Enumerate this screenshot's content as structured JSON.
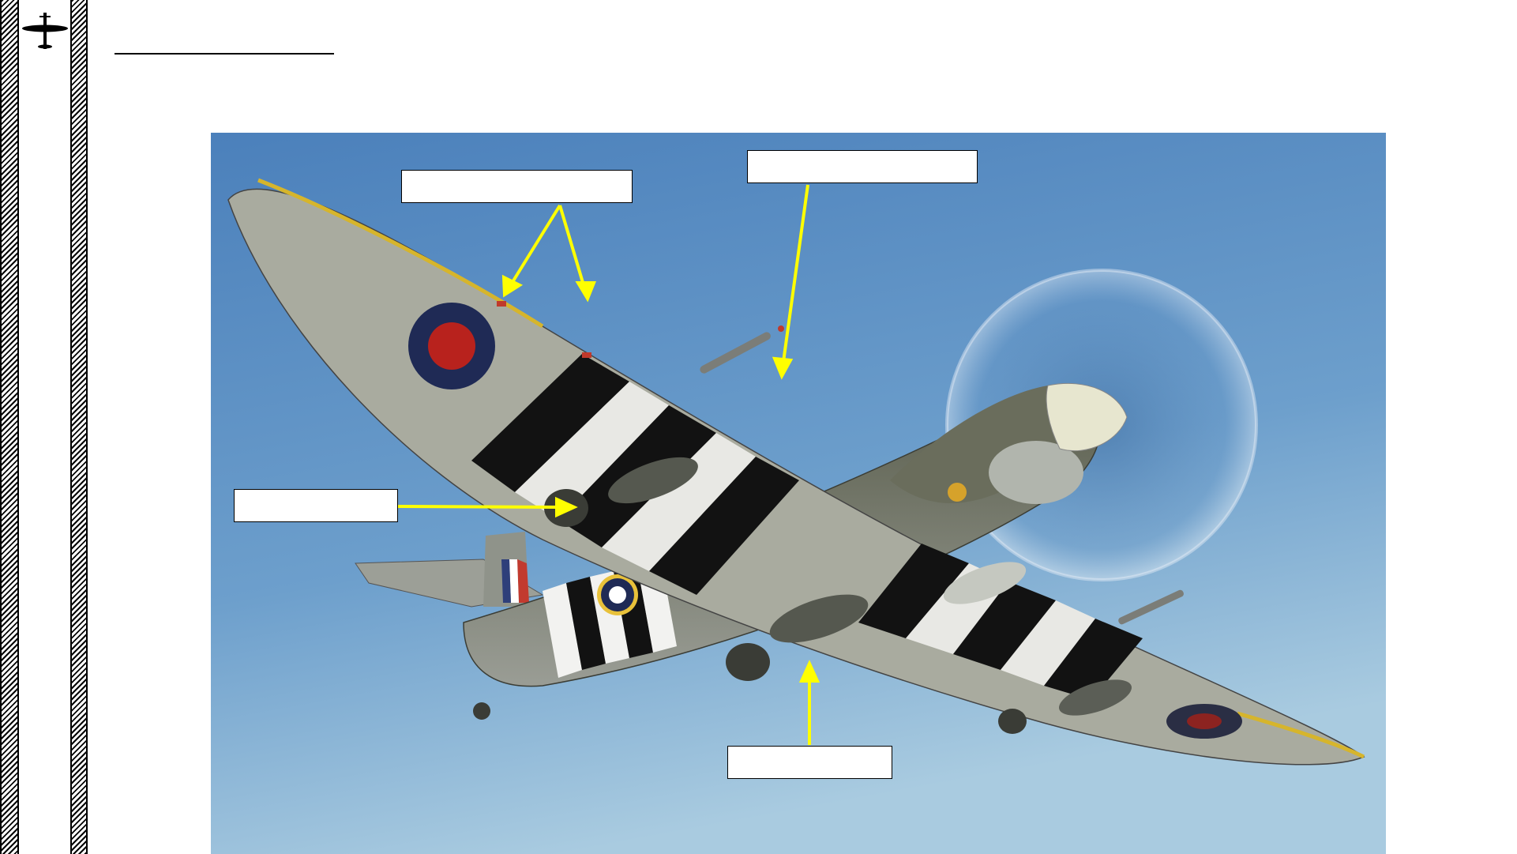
{
  "page": {
    "title": "",
    "background": "#ffffff"
  },
  "logo": {
    "icon": "spitfire-silhouette-icon"
  },
  "photo": {
    "subject": "spitfire-underside-in-flight",
    "sky_top": "#4f86bf",
    "sky_bottom": "#9ec4dc"
  },
  "callouts": [
    {
      "id": "wingtip-lights",
      "label": ""
    },
    {
      "id": "pitot-tube",
      "label": ""
    },
    {
      "id": "under-wing-radiator",
      "label": ""
    },
    {
      "id": "oil-cooler",
      "label": ""
    }
  ],
  "colors": {
    "arrow": "#ffff00",
    "roundel_blue": "#1f2a55",
    "roundel_red": "#b8221d",
    "invasion_black": "#121212",
    "wing_grey": "#a6a89e"
  }
}
